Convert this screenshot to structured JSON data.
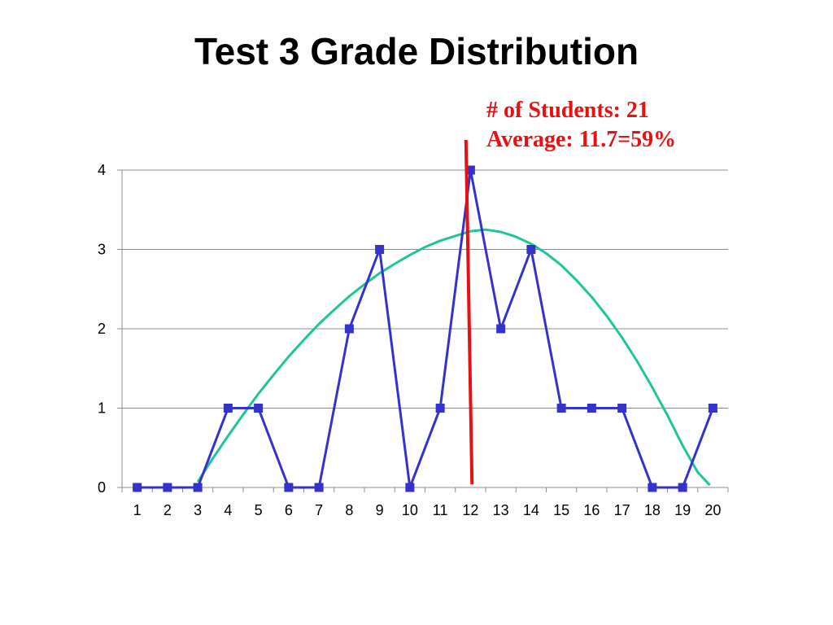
{
  "slide": {
    "title": "Test 3 Grade Distribution"
  },
  "annotation": {
    "line1": "# of Students: 21",
    "line2": "Average: 11.7=59%",
    "color": "#e81010"
  },
  "chart_data": {
    "type": "line",
    "title": "",
    "xlabel": "",
    "ylabel": "",
    "categories": [
      "1",
      "2",
      "3",
      "4",
      "5",
      "6",
      "7",
      "8",
      "9",
      "10",
      "11",
      "12",
      "13",
      "14",
      "15",
      "16",
      "17",
      "18",
      "19",
      "20"
    ],
    "ylim": [
      0,
      4
    ],
    "yticks": [
      "0",
      "1",
      "2",
      "3",
      "4"
    ],
    "grid": "horizontal",
    "series": [
      {
        "values": [
          0,
          0,
          0,
          1,
          1,
          0,
          0,
          2,
          3,
          0,
          1,
          4,
          2,
          3,
          1,
          1,
          1,
          0,
          0,
          1
        ],
        "color": "#3333cc",
        "marker": "square"
      }
    ],
    "fit_curve": {
      "x": [
        3.0,
        3.5,
        4.0,
        4.5,
        5.0,
        5.5,
        6.0,
        6.5,
        7.0,
        7.5,
        8.0,
        8.5,
        9.0,
        9.5,
        10.0,
        10.5,
        11.0,
        11.5,
        12.0,
        12.5,
        13.0,
        13.5,
        14.0,
        14.5,
        15.0,
        15.5,
        16.0,
        16.5,
        17.0,
        17.5,
        18.0,
        18.5,
        19.0,
        19.5,
        19.9
      ],
      "y": [
        0.07,
        0.37,
        0.65,
        0.92,
        1.18,
        1.42,
        1.65,
        1.86,
        2.06,
        2.24,
        2.41,
        2.56,
        2.7,
        2.82,
        2.93,
        3.03,
        3.11,
        3.17,
        3.23,
        3.25,
        3.22,
        3.16,
        3.07,
        2.95,
        2.8,
        2.61,
        2.4,
        2.16,
        1.89,
        1.59,
        1.26,
        0.91,
        0.53,
        0.19,
        0.03
      ],
      "color": "#1fc49a"
    },
    "average_line": {
      "x_top": 11.85,
      "x_bottom": 12.05,
      "y_top": 4.38,
      "y_bottom": 0.04,
      "color": "#e81010"
    }
  }
}
